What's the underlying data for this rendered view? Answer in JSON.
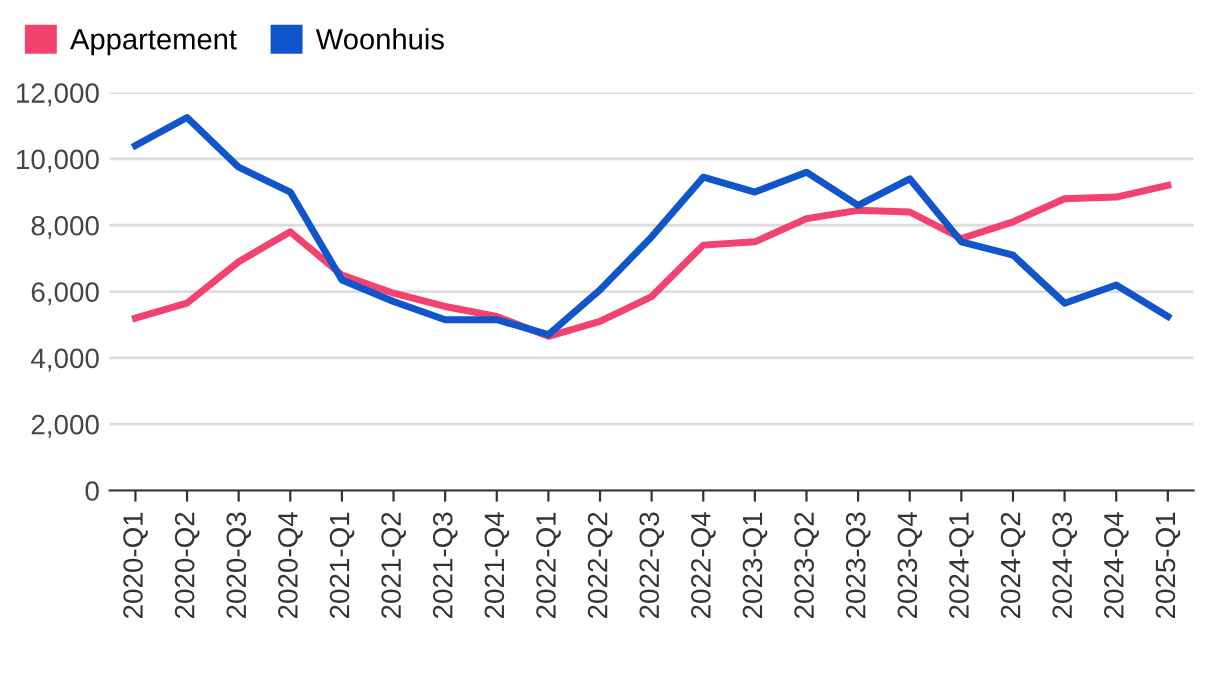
{
  "chart_data": {
    "type": "line",
    "categories": [
      "2020-Q1",
      "2020-Q2",
      "2020-Q3",
      "2020-Q4",
      "2021-Q1",
      "2021-Q2",
      "2021-Q3",
      "2021-Q4",
      "2022-Q1",
      "2022-Q2",
      "2022-Q3",
      "2022-Q4",
      "2023-Q1",
      "2023-Q2",
      "2023-Q3",
      "2023-Q4",
      "2024-Q1",
      "2024-Q2",
      "2024-Q3",
      "2024-Q4",
      "2025-Q1"
    ],
    "series": [
      {
        "name": "Appartement",
        "color": "#f2426e",
        "values": [
          5200,
          5650,
          6900,
          7800,
          6500,
          5950,
          5550,
          5250,
          4650,
          5100,
          5850,
          7400,
          7500,
          8200,
          8450,
          8400,
          7600,
          8100,
          8800,
          8850,
          9200
        ]
      },
      {
        "name": "Woonhuis",
        "color": "#1155cc",
        "values": [
          10400,
          11250,
          9750,
          9000,
          6350,
          5700,
          5150,
          5150,
          4700,
          6050,
          7650,
          9450,
          9000,
          9600,
          8600,
          9400,
          7500,
          7100,
          5650,
          6200,
          5250
        ]
      }
    ],
    "ylim": [
      0,
      12000
    ],
    "yticks": [
      {
        "value": 0,
        "label": "0"
      },
      {
        "value": 2000,
        "label": "2,000"
      },
      {
        "value": 4000,
        "label": "4,000"
      },
      {
        "value": 6000,
        "label": "6,000"
      },
      {
        "value": 8000,
        "label": "8,000"
      },
      {
        "value": 10000,
        "label": "10,000"
      },
      {
        "value": 12000,
        "label": "12,000"
      }
    ],
    "grid": "y",
    "legend": "top left",
    "marker": "none"
  }
}
